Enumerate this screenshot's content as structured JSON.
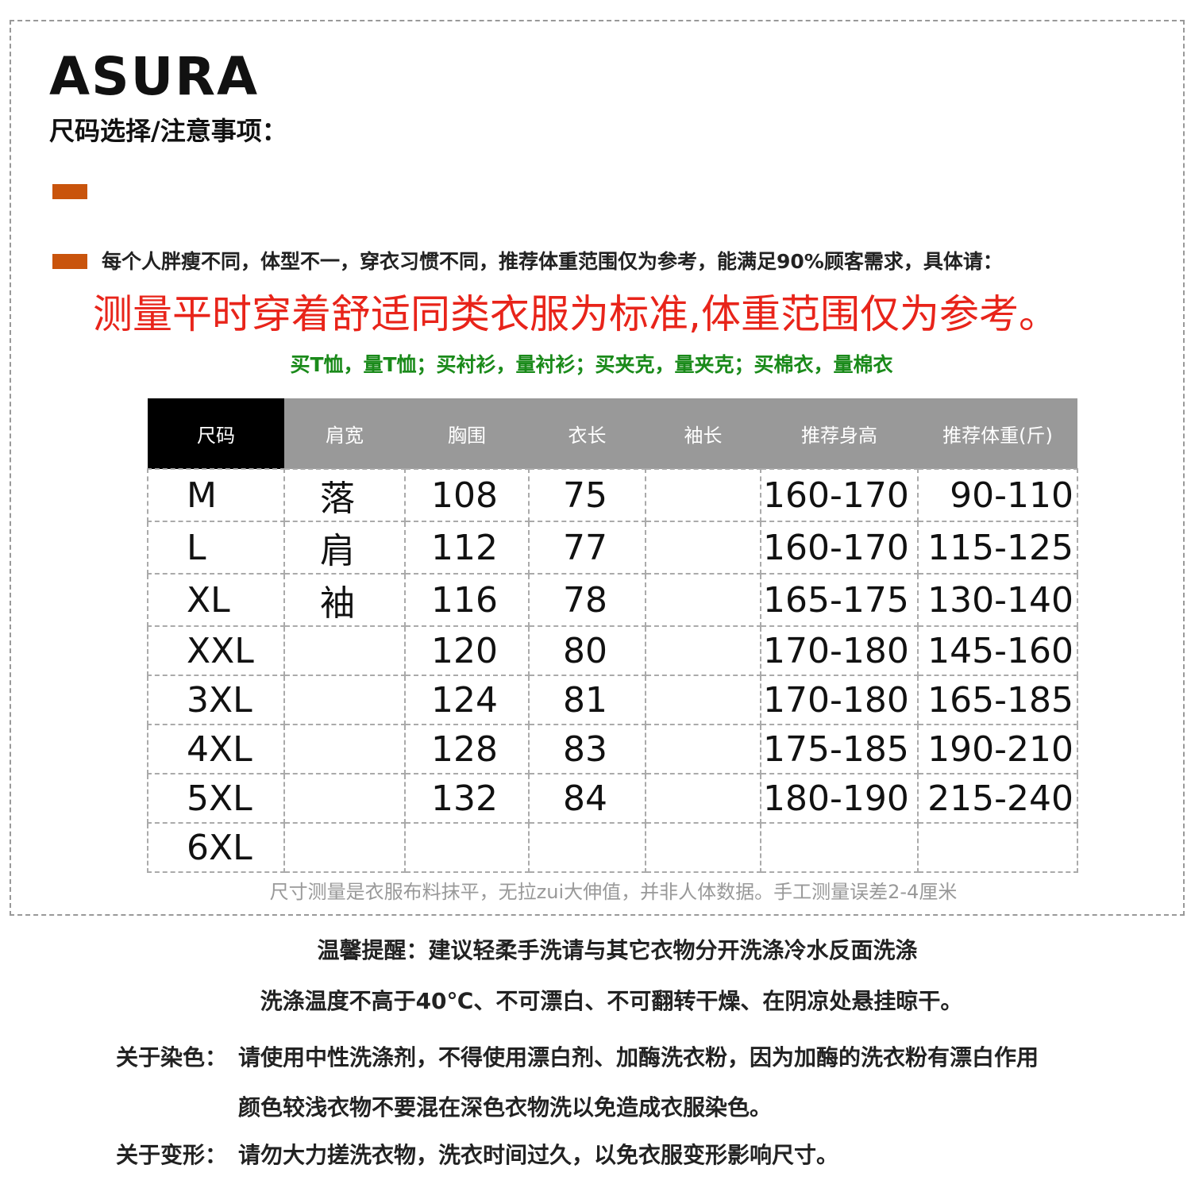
{
  "header": {
    "brand": "ASURA",
    "subtitle": "尺码选择/注意事项："
  },
  "notice": {
    "text": "每个人胖瘦不同，体型不一，穿衣习惯不同，推荐体重范围仅为参考，能满足90%顾客需求，具体请：",
    "highlight": "测量平时穿着舒适同类衣服为标准,体重范围仅为参考。",
    "tip": "买T恤，量T恤；买衬衫，量衬衫；买夹克，量夹克；买棉衣，量棉衣"
  },
  "table": {
    "headers": [
      "尺码",
      "肩宽",
      "胸围",
      "衣长",
      "袖长",
      "推荐身高",
      "推荐体重(斤)"
    ],
    "rows": [
      [
        "M",
        "落",
        108,
        75,
        null,
        "160-170",
        "90-110"
      ],
      [
        "L",
        "肩",
        112,
        77,
        null,
        "160-170",
        "115-125"
      ],
      [
        "XL",
        "袖",
        116,
        78,
        null,
        "165-175",
        "130-140"
      ],
      [
        "XXL",
        null,
        120,
        80,
        null,
        "170-180",
        "145-160"
      ],
      [
        "3XL",
        null,
        124,
        81,
        null,
        "170-180",
        "165-185"
      ],
      [
        "4XL",
        null,
        128,
        83,
        null,
        "175-185",
        "190-210"
      ],
      [
        "5XL",
        null,
        132,
        84,
        null,
        "180-190",
        "215-240"
      ],
      [
        "6XL",
        null,
        null,
        null,
        null,
        null,
        null
      ]
    ]
  },
  "footnote": "尺寸测量是衣服布料抹平，无拉zui大伸值，并非人体数据。手工测量误差2-4厘米",
  "care": {
    "reminder": "温馨提醒：建议轻柔手洗请与其它衣物分开洗涤冷水反面洗涤",
    "temperature": "洗涤温度不高于40℃、不可漂白、不可翻转干燥、在阴凉处悬挂晾干。",
    "dye_label": "关于染色：",
    "dye_lines": [
      "请使用中性洗涤剂，不得使用漂白剂、加酶洗衣粉，因为加酶的洗衣粉有漂白作用",
      "颜色较浅衣物不要混在深色衣物洗以免造成衣服染色。"
    ],
    "deform_label": "关于变形：",
    "deform_text": "请勿大力搓洗衣物，洗衣时间过久，以免衣服变形影响尺寸。"
  }
}
